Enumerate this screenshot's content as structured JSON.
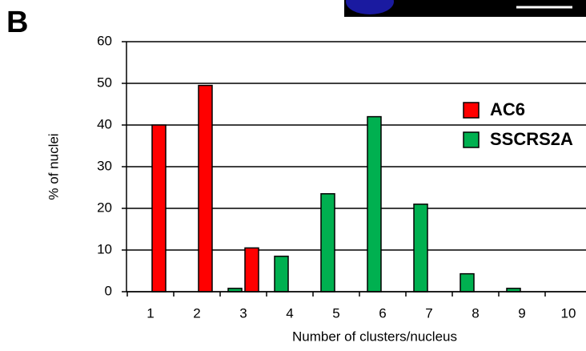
{
  "panel_label": "B",
  "chart_data": {
    "type": "bar",
    "xlabel": "Number of clusters/nucleus",
    "ylabel": "% of nuclei",
    "categories": [
      "1",
      "2",
      "3",
      "4",
      "5",
      "6",
      "7",
      "8",
      "9",
      "10"
    ],
    "series": [
      {
        "name": "AC6",
        "color": "#ff0000",
        "values": [
          40,
          49.5,
          10.5,
          0,
          0,
          0,
          0,
          0,
          0,
          0
        ]
      },
      {
        "name": "SSCRS2A",
        "color": "#00b050",
        "values": [
          0,
          0,
          0.8,
          8.5,
          23.5,
          42,
          21,
          4.3,
          0.8,
          0
        ]
      }
    ],
    "ylim": [
      0,
      60
    ],
    "yticks": [
      0,
      10,
      20,
      30,
      40,
      50,
      60
    ],
    "grid": true,
    "legend": "right"
  }
}
